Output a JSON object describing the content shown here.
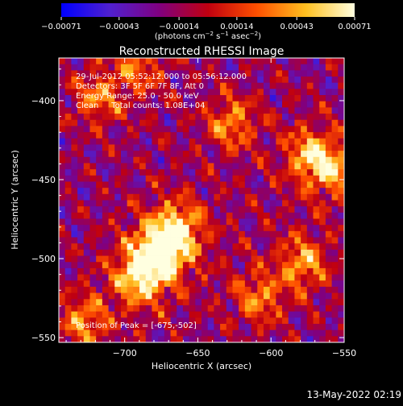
{
  "chart_data": {
    "type": "heatmap",
    "title": "Reconstructed RHESSI Image",
    "xlabel": "Heliocentric X (arcsec)",
    "ylabel": "Heliocentric Y (arcsec)",
    "xlim": [
      -745,
      -550
    ],
    "ylim": [
      -553,
      -373
    ],
    "x_ticks": [
      -700,
      -650,
      -600,
      -550
    ],
    "x_tick_labels": [
      "−700",
      "−650",
      "−600",
      "−550"
    ],
    "y_ticks": [
      -550,
      -500,
      -450,
      -400
    ],
    "y_tick_labels": [
      "−550",
      "−500",
      "−450",
      "−400"
    ],
    "colorbar": {
      "range": [
        -0.00071,
        0.00071
      ],
      "ticks": [
        -0.00071,
        -0.00043,
        -0.00014,
        0.00014,
        0.00043,
        0.00071
      ],
      "tick_labels": [
        "−0.00071",
        "−0.00043",
        "−0.00014",
        "0.00014",
        "0.00043",
        "0.00071"
      ],
      "units_parts": [
        "(photons cm",
        "−2",
        " s",
        "−1",
        " asec",
        "−2",
        ")"
      ],
      "stops": [
        "#0000ff",
        "#5020d0",
        "#800080",
        "#c00010",
        "#ff5000",
        "#ffc020",
        "#ffffe0"
      ]
    },
    "annotations": [
      "29-Jul-2012 05:52:12.000 to 05:56:12.000",
      "Detectors: 3F 5F 6F 7F 8F, Att 0",
      "Energy Range: 25.0 - 50.0 keV",
      "Clean     Total counts: 1.08E+04"
    ],
    "peak_label": "Position of Peak = [-675,-502]",
    "peak": [
      -675,
      -502
    ],
    "bright_sources": [
      {
        "x": -677,
        "y": -497,
        "intensity": 1.0
      },
      {
        "x": -664,
        "y": -482,
        "intensity": 0.8
      },
      {
        "x": -690,
        "y": -512,
        "intensity": 0.75
      },
      {
        "x": -572,
        "y": -435,
        "intensity": 0.7
      },
      {
        "x": -578,
        "y": -503,
        "intensity": 0.6
      },
      {
        "x": -627,
        "y": -414,
        "intensity": 0.55
      },
      {
        "x": -718,
        "y": -398,
        "intensity": 0.5
      },
      {
        "x": -728,
        "y": -540,
        "intensity": 0.55
      },
      {
        "x": -608,
        "y": -525,
        "intensity": 0.5
      },
      {
        "x": -690,
        "y": -378,
        "intensity": 0.45
      },
      {
        "x": -556,
        "y": -445,
        "intensity": 0.5
      }
    ],
    "grid": false
  },
  "footer": {
    "timestamp": "13-May-2022 02:19"
  }
}
